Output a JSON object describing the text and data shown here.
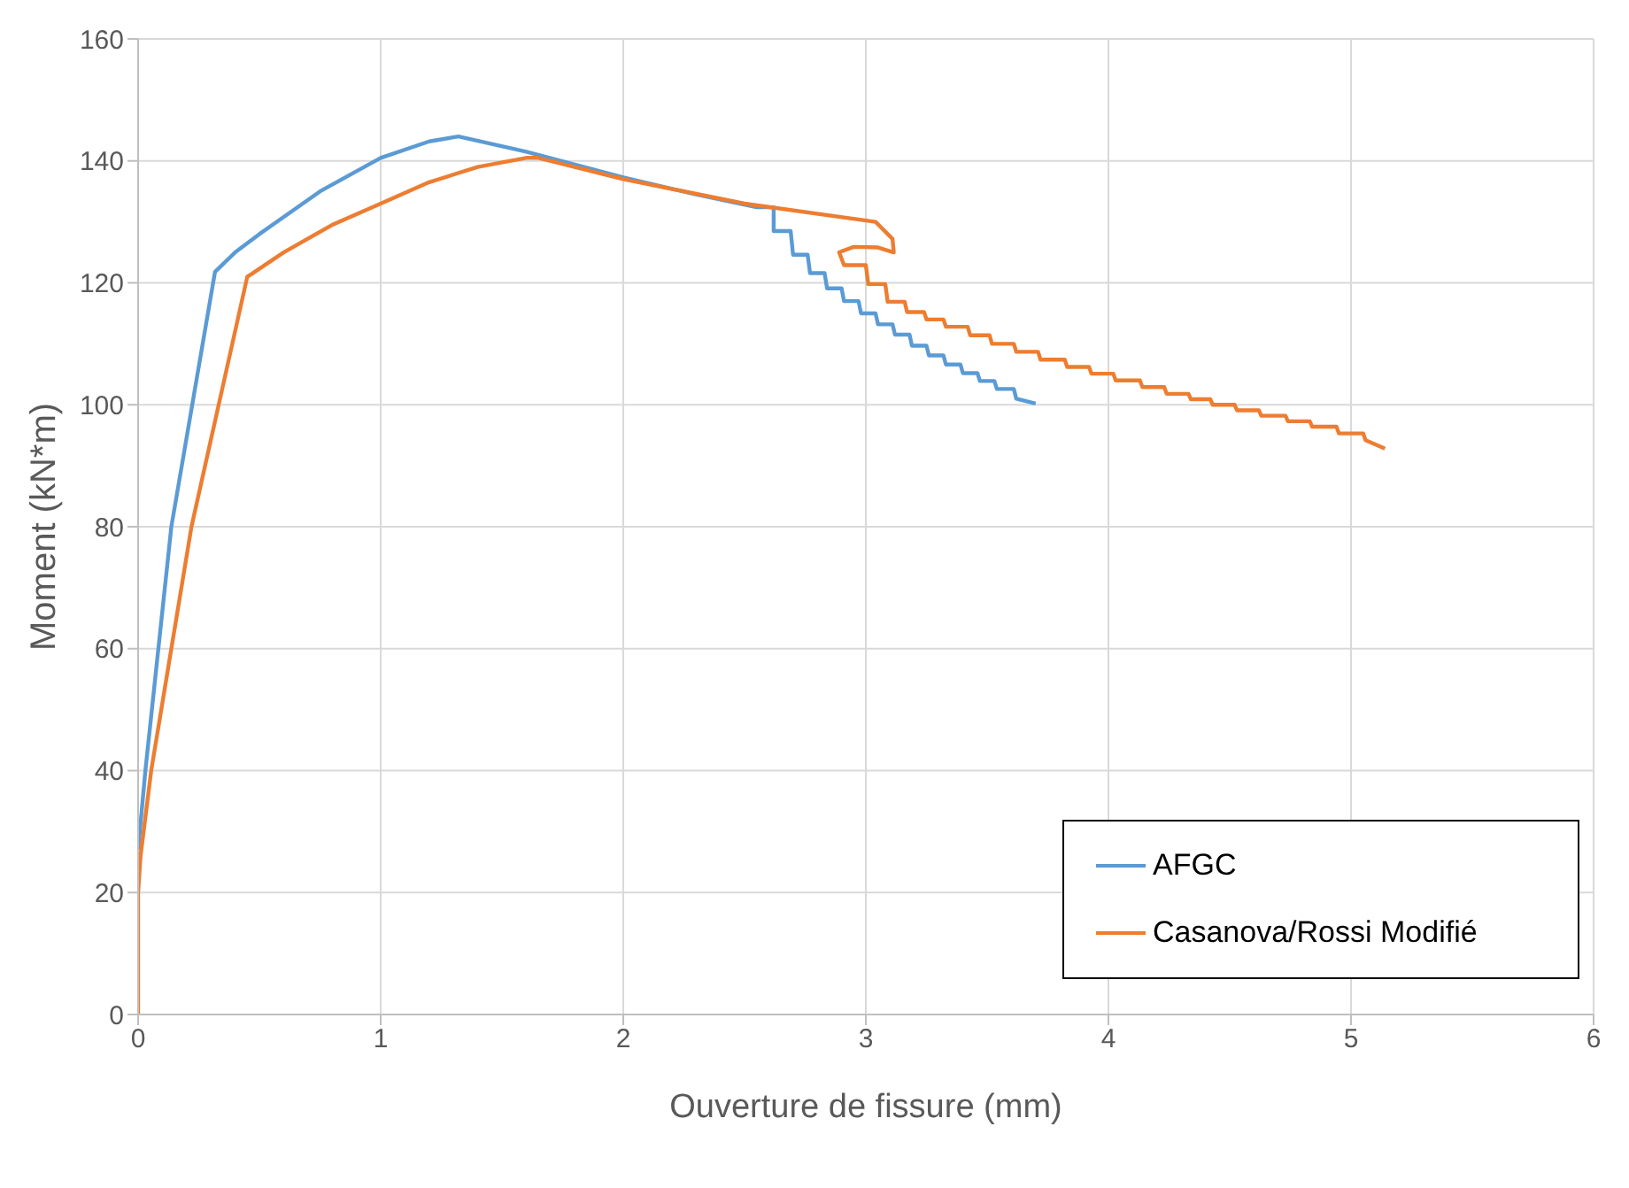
{
  "chart_data": {
    "type": "line",
    "xlabel": "Ouverture de fissure (mm)",
    "ylabel": "Moment (kN*m)",
    "xlim": [
      0,
      6
    ],
    "xticks": [
      0,
      1,
      2,
      3,
      4,
      5,
      6
    ],
    "ylim": [
      0,
      160
    ],
    "yticks": [
      0,
      20,
      40,
      60,
      80,
      100,
      120,
      140,
      160
    ],
    "grid": true,
    "legend": "bottom right",
    "marker": "none",
    "line_style": "solid",
    "series": [
      {
        "name": "AFGC",
        "color": "#5b9bd5",
        "x": [
          0,
          0.03,
          0.137,
          0.317,
          0.4,
          0.5,
          0.75,
          1,
          1.2,
          1.32,
          1.6,
          2,
          2.3,
          2.55,
          2.55,
          2.62,
          2.62,
          2.63,
          2.69,
          2.7,
          2.76,
          2.77,
          2.83,
          2.84,
          2.9,
          2.91,
          2.97,
          2.98,
          3.04,
          3.05,
          3.11,
          3.12,
          3.18,
          3.19,
          3.25,
          3.26,
          3.32,
          3.33,
          3.39,
          3.4,
          3.46,
          3.47,
          3.53,
          3.54,
          3.61,
          3.62,
          3.7
        ],
        "values": [
          27,
          40,
          80,
          121.8,
          125,
          128,
          135,
          140.5,
          143.2,
          144,
          141.5,
          137.3,
          134.5,
          132.4,
          132.4,
          132.4,
          128.5,
          128.5,
          128.5,
          124.6,
          124.6,
          121.6,
          121.6,
          119.1,
          119.1,
          117,
          117,
          115,
          115,
          113.2,
          113.2,
          111.5,
          111.5,
          109.7,
          109.7,
          108.1,
          108.1,
          106.6,
          106.6,
          105.2,
          105.2,
          103.9,
          103.9,
          102.6,
          102.6,
          101,
          100.2
        ]
      },
      {
        "name": "Casanova/Rossi Modifié",
        "color": "#ed7d31",
        "x": [
          0,
          0,
          0.01,
          0.054,
          0.22,
          0.45,
          0.47,
          0.6,
          0.8,
          1,
          1.2,
          1.4,
          1.6,
          1.65,
          2,
          2.5,
          3.04,
          3.11,
          3.115,
          3.05,
          2.95,
          2.89,
          2.91,
          3.0,
          3.01,
          3.08,
          3.09,
          3.16,
          3.17,
          3.24,
          3.25,
          3.32,
          3.33,
          3.42,
          3.43,
          3.51,
          3.52,
          3.61,
          3.62,
          3.71,
          3.72,
          3.82,
          3.83,
          3.92,
          3.93,
          4.02,
          4.03,
          4.13,
          4.14,
          4.23,
          4.24,
          4.33,
          4.34,
          4.42,
          4.43,
          4.52,
          4.53,
          4.62,
          4.63,
          4.73,
          4.74,
          4.83,
          4.84,
          4.94,
          4.95,
          5.05,
          5.06,
          5.14
        ],
        "values": [
          0,
          20,
          26,
          40,
          80,
          121,
          121.5,
          125,
          129.5,
          133,
          136.5,
          139,
          140.5,
          140.5,
          137,
          133,
          130,
          127.2,
          125,
          125.8,
          125.9,
          125,
          122.9,
          122.9,
          119.8,
          119.8,
          116.9,
          116.9,
          115.2,
          115.2,
          114,
          114,
          112.8,
          112.8,
          111.4,
          111.4,
          110,
          110,
          108.7,
          108.7,
          107.4,
          107.4,
          106.2,
          106.2,
          105.1,
          105.1,
          104,
          104,
          102.9,
          102.9,
          101.8,
          101.8,
          100.9,
          100.9,
          100,
          100,
          99.1,
          99.1,
          98.2,
          98.2,
          97.3,
          97.3,
          96.4,
          96.4,
          95.3,
          95.3,
          94.2,
          92.8
        ]
      }
    ]
  }
}
